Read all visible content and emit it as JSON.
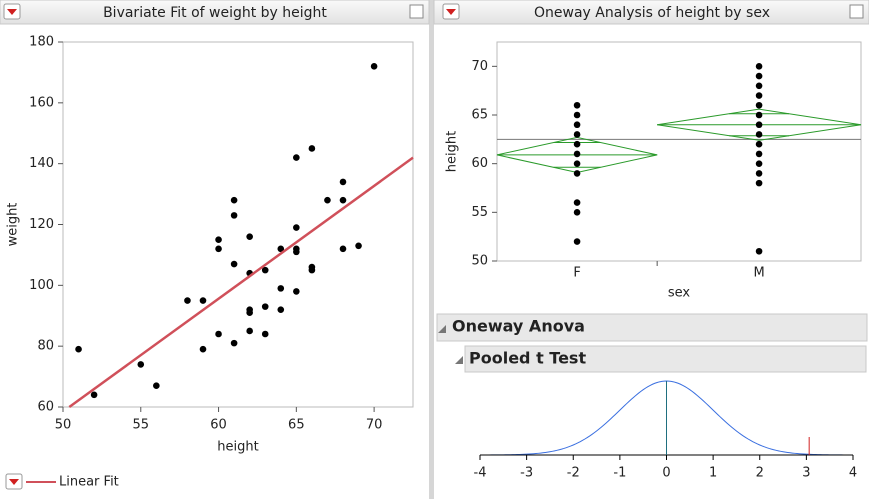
{
  "panels": [
    {
      "title": "Bivariate Fit of weight by height"
    },
    {
      "title": "Oneway Analysis of height by sex"
    }
  ],
  "outline": [
    "Oneway Anova",
    "Pooled t Test"
  ],
  "chart_data": [
    {
      "type": "scatter",
      "x_label": "height",
      "y_label": "weight",
      "color": "#000000",
      "x": [
        51,
        52,
        55,
        56,
        58,
        59,
        59,
        60,
        60,
        60,
        61,
        61,
        61,
        61,
        62,
        62,
        62,
        62,
        62,
        63,
        63,
        63,
        64,
        64,
        64,
        65,
        65,
        65,
        65,
        65,
        66,
        66,
        66,
        67,
        68,
        68,
        68,
        69,
        70
      ],
      "values": [
        79,
        64,
        74,
        67,
        95,
        95,
        79,
        115,
        112,
        84,
        128,
        123,
        107,
        81,
        116,
        104,
        92,
        91,
        85,
        105,
        93,
        84,
        112,
        99,
        92,
        142,
        119,
        112,
        111,
        98,
        145,
        106,
        105,
        128,
        134,
        128,
        112,
        113,
        172
      ],
      "xlim": [
        50,
        72.5
      ],
      "ylim": [
        60,
        180
      ],
      "xticks": [
        50,
        55,
        60,
        65,
        70
      ],
      "yticks": [
        60,
        80,
        100,
        120,
        140,
        160,
        180
      ],
      "fit": {
        "name": "Linear Fit",
        "color": "#d0505a",
        "intercept": -127,
        "slope": 3.71
      }
    },
    {
      "type": "oneway",
      "x_label": "sex",
      "y_label": "height",
      "categories": [
        "F",
        "M"
      ],
      "points": [
        [
          66,
          65,
          64,
          63,
          62,
          61,
          60,
          59,
          56,
          55,
          52
        ],
        [
          70,
          69,
          68,
          67,
          66,
          65,
          64,
          63,
          62,
          61,
          60,
          59,
          58,
          51
        ]
      ],
      "means": [
        60.9,
        64.0
      ],
      "ci_lower": [
        59.1,
        62.4
      ],
      "ci_upper": [
        62.7,
        65.6
      ],
      "grand_mean": 62.5,
      "color": "#2a9a2a",
      "ylim": [
        50,
        72.5
      ],
      "yticks": [
        50,
        55,
        60,
        65,
        70
      ]
    },
    {
      "type": "density",
      "xlim": [
        -4,
        4
      ],
      "xticks": [
        -4,
        -3,
        -2,
        -1,
        0,
        1,
        2,
        3,
        4
      ],
      "t_ratio": 3.06,
      "color": "#3a6fe0"
    }
  ]
}
